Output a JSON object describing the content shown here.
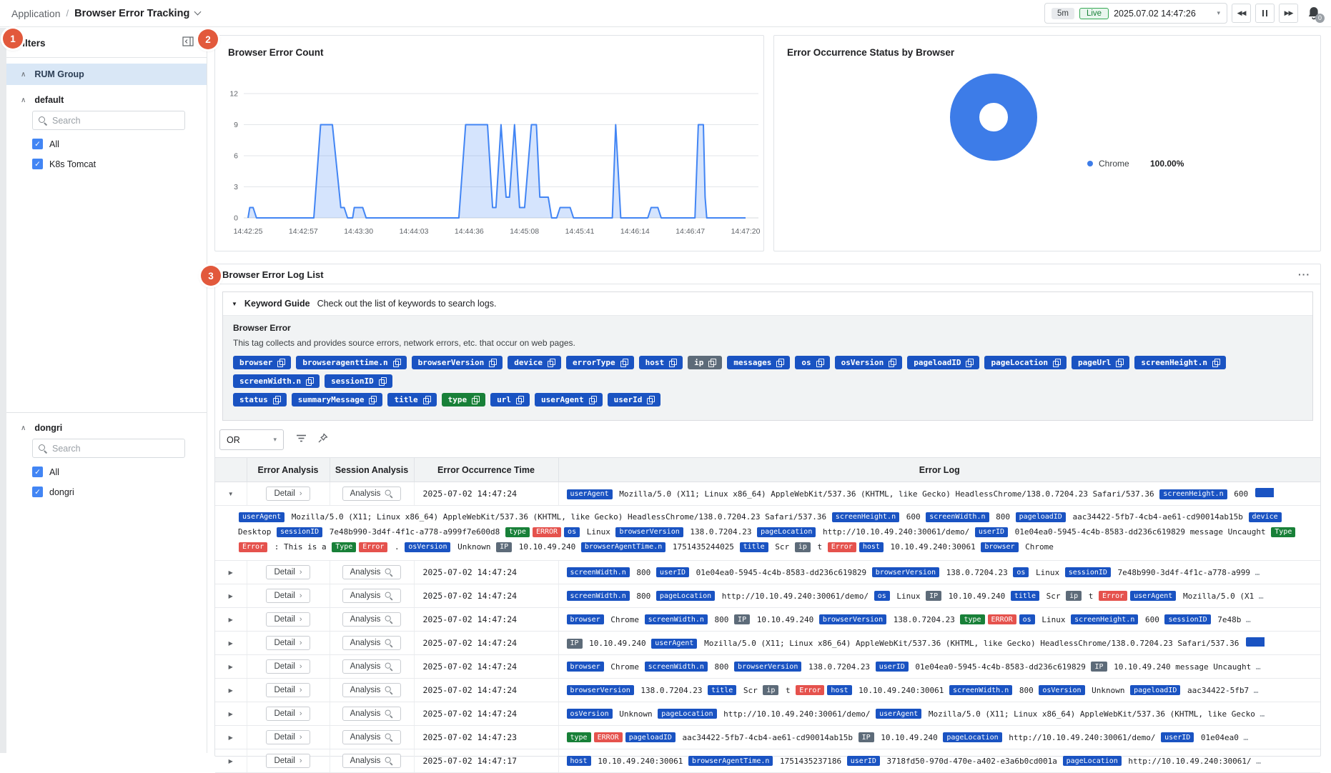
{
  "colors": {
    "accent_blue": "#1a53c2",
    "tag_grey": "#5d6b79",
    "tag_green": "#188038",
    "tag_red": "#e5524d",
    "chart_blue": "#4285f4",
    "donut_blue": "#3d7ce8",
    "badge_orange": "#e2593c",
    "live_green": "#188038",
    "rum_header_bg": "#d9e7f6",
    "checkbox_blue": "#4285f4"
  },
  "topbar": {
    "breadcrumb_root": "Application",
    "breadcrumb_sep": "/",
    "page_title": "Browser Error Tracking",
    "range_label": "5m",
    "live_label": "Live",
    "timestamp": "2025.07.02 14:47:26",
    "alarm_count": "0"
  },
  "annotations": {
    "one": "1",
    "two": "2",
    "three": "3"
  },
  "sidebar": {
    "title": "Filters",
    "root_group": "RUM Group",
    "groups": [
      {
        "name": "default",
        "search_placeholder": "Search",
        "items": [
          {
            "label": "All",
            "checked": true
          },
          {
            "label": "K8s Tomcat",
            "checked": true
          }
        ]
      },
      {
        "name": "dongri",
        "search_placeholder": "Search",
        "items": [
          {
            "label": "All",
            "checked": true
          },
          {
            "label": "dongri",
            "checked": true
          }
        ]
      }
    ]
  },
  "chart_data": [
    {
      "type": "area",
      "title": "Browser Error Count",
      "xlabel": "",
      "ylabel": "",
      "ylim": [
        0,
        12
      ],
      "y_ticks": [
        0,
        3,
        6,
        9,
        12
      ],
      "grid": true,
      "x_ticks": [
        "14:42:25",
        "14:42:57",
        "14:43:30",
        "14:44:03",
        "14:44:36",
        "14:45:08",
        "14:45:41",
        "14:46:14",
        "14:46:47",
        "14:47:20"
      ],
      "x_range_seconds": [
        0,
        295
      ],
      "series": [
        {
          "name": "Browser Error Count",
          "points": [
            [
              0,
              0
            ],
            [
              1,
              1
            ],
            [
              3,
              1
            ],
            [
              5,
              0
            ],
            [
              39,
              0
            ],
            [
              43,
              9
            ],
            [
              50,
              9
            ],
            [
              55,
              1
            ],
            [
              57,
              1
            ],
            [
              59,
              0
            ],
            [
              62,
              0
            ],
            [
              63,
              1
            ],
            [
              68,
              1
            ],
            [
              70,
              0
            ],
            [
              125,
              0
            ],
            [
              129,
              9
            ],
            [
              142,
              9
            ],
            [
              145,
              1
            ],
            [
              147,
              1
            ],
            [
              150,
              9
            ],
            [
              153,
              2
            ],
            [
              155,
              2
            ],
            [
              158,
              9
            ],
            [
              161,
              1
            ],
            [
              164,
              1
            ],
            [
              168,
              9
            ],
            [
              171,
              9
            ],
            [
              173,
              2
            ],
            [
              178,
              2
            ],
            [
              180,
              0
            ],
            [
              183,
              0
            ],
            [
              185,
              1
            ],
            [
              191,
              1
            ],
            [
              193,
              0
            ],
            [
              216,
              0
            ],
            [
              218,
              9
            ],
            [
              221,
              0
            ],
            [
              237,
              0
            ],
            [
              239,
              1
            ],
            [
              243,
              1
            ],
            [
              245,
              0
            ],
            [
              265,
              0
            ],
            [
              267,
              9
            ],
            [
              270,
              9
            ],
            [
              271,
              2
            ],
            [
              272,
              0
            ],
            [
              295,
              0
            ]
          ]
        }
      ],
      "line_color": "#4285f4",
      "fill_color": "rgba(66,133,244,0.22)"
    },
    {
      "type": "donut",
      "title": "Error Occurrence Status by Browser",
      "slices": [
        {
          "label": "Chrome",
          "value": 100.0,
          "display": "100.00%",
          "color": "#3d7ce8"
        }
      ],
      "legend_position": "right"
    }
  ],
  "log_list": {
    "title": "Browser Error Log List",
    "menu_dots": "···",
    "keyword_guide": {
      "label": "Keyword Guide",
      "hint": "Check out the list of keywords to search logs.",
      "section_title": "Browser Error",
      "description": "This tag collects and provides source errors, network errors, etc. that occur on web pages.",
      "tag_rows": [
        [
          {
            "label": "browser",
            "color": "blue"
          },
          {
            "label": "browseragenttime.n",
            "color": "blue"
          },
          {
            "label": "browserVersion",
            "color": "blue"
          },
          {
            "label": "device",
            "color": "blue"
          },
          {
            "label": "errorType",
            "color": "blue"
          },
          {
            "label": "host",
            "color": "blue"
          },
          {
            "label": "ip",
            "color": "grey"
          },
          {
            "label": "messages",
            "color": "blue"
          },
          {
            "label": "os",
            "color": "blue"
          },
          {
            "label": "osVersion",
            "color": "blue"
          },
          {
            "label": "pageloadID",
            "color": "blue"
          },
          {
            "label": "pageLocation",
            "color": "blue"
          },
          {
            "label": "pageUrl",
            "color": "blue"
          },
          {
            "label": "screenHeight.n",
            "color": "blue"
          },
          {
            "label": "screenWidth.n",
            "color": "blue"
          },
          {
            "label": "sessionID",
            "color": "blue"
          }
        ],
        [
          {
            "label": "status",
            "color": "blue"
          },
          {
            "label": "summaryMessage",
            "color": "blue"
          },
          {
            "label": "title",
            "color": "blue"
          },
          {
            "label": "type",
            "color": "green"
          },
          {
            "label": "url",
            "color": "blue"
          },
          {
            "label": "userAgent",
            "color": "blue"
          },
          {
            "label": "userId",
            "color": "blue"
          }
        ]
      ]
    },
    "operator": "OR",
    "table": {
      "headers": [
        "",
        "Error Analysis",
        "Session Analysis",
        "Error Occurrence Time",
        "Error Log"
      ],
      "detail_label": "Detail",
      "analysis_label": "Analysis",
      "rows": [
        {
          "expanded": true,
          "time": "2025-07-02 14:47:24",
          "log": [
            {
              "c": "userAgent"
            },
            {
              "t": "Mozilla/5.0 (X11; Linux x86_64) AppleWebKit/537.36 (KHTML, like Gecko) HeadlessChrome/138.0.7204.23 Safari/537.36"
            },
            {
              "c": "screenHeight.n"
            },
            {
              "t": "600"
            },
            {
              "cut": 1
            }
          ],
          "detail": [
            {
              "c": "userAgent"
            },
            {
              "t": "Mozilla/5.0 (X11; Linux x86_64) AppleWebKit/537.36 (KHTML, like Gecko) HeadlessChrome/138.0.7204.23 Safari/537.36"
            },
            {
              "c": "screenHeight.n"
            },
            {
              "t": "600"
            },
            {
              "c": "screenWidth.n"
            },
            {
              "t": "800"
            },
            {
              "c": "pageloadID"
            },
            {
              "t": "aac34422-5fb7-4cb4-ae61-cd90014ab15b"
            },
            {
              "c": "device"
            },
            {
              "t": "Desktop"
            },
            {
              "c": "sessionID"
            },
            {
              "t": "7e48b990-3d4f-4f1c-a778-a999f7e600d8"
            },
            {
              "c": "type",
              "x": "green"
            },
            {
              "c": "ERROR",
              "x": "red"
            },
            {
              "c": "os"
            },
            {
              "t": "Linux"
            },
            {
              "c": "browserVersion"
            },
            {
              "t": "138.0.7204.23"
            },
            {
              "c": "pageLocation"
            },
            {
              "t": "http://10.10.49.240:30061/demo/"
            },
            {
              "c": "userID"
            },
            {
              "t": "01e04ea0-5945-4c4b-8583-dd236c619829"
            },
            {
              "t": "message Uncaught"
            },
            {
              "c": "Type",
              "x": "green"
            },
            {
              "c": "Error",
              "x": "red"
            },
            {
              "t": ": This is a"
            },
            {
              "c": "Type",
              "x": "green"
            },
            {
              "c": "Error",
              "x": "red"
            },
            {
              "t": "."
            },
            {
              "c": "osVersion"
            },
            {
              "t": "Unknown"
            },
            {
              "c": "IP",
              "x": "grey"
            },
            {
              "t": "10.10.49.240"
            },
            {
              "c": "browserAgentTime.n"
            },
            {
              "t": "1751435244025"
            },
            {
              "c": "title"
            },
            {
              "t": "Scr"
            },
            {
              "c": "ip",
              "x": "grey"
            },
            {
              "t": "t"
            },
            {
              "c": "Error",
              "x": "red"
            },
            {
              "c": "host"
            },
            {
              "t": "10.10.49.240:30061"
            },
            {
              "c": "browser"
            },
            {
              "t": "Chrome"
            }
          ]
        },
        {
          "time": "2025-07-02 14:47:24",
          "log": [
            {
              "c": "screenWidth.n"
            },
            {
              "t": "800"
            },
            {
              "c": "userID"
            },
            {
              "t": "01e04ea0-5945-4c4b-8583-dd236c619829"
            },
            {
              "c": "browserVersion"
            },
            {
              "t": "138.0.7204.23"
            },
            {
              "c": "os"
            },
            {
              "t": "Linux"
            },
            {
              "c": "sessionID"
            },
            {
              "t": "7e48b990-3d4f-4f1c-a778-a999"
            },
            {
              "e": 1
            }
          ]
        },
        {
          "time": "2025-07-02 14:47:24",
          "log": [
            {
              "c": "screenWidth.n"
            },
            {
              "t": "800"
            },
            {
              "c": "pageLocation"
            },
            {
              "t": "http://10.10.49.240:30061/demo/"
            },
            {
              "c": "os"
            },
            {
              "t": "Linux"
            },
            {
              "c": "IP",
              "x": "grey"
            },
            {
              "t": "10.10.49.240"
            },
            {
              "c": "title"
            },
            {
              "t": "Scr"
            },
            {
              "c": "ip",
              "x": "grey"
            },
            {
              "t": "t"
            },
            {
              "c": "Error",
              "x": "red"
            },
            {
              "c": "userAgent"
            },
            {
              "t": "Mozilla/5.0 (X1"
            },
            {
              "e": 1
            }
          ]
        },
        {
          "time": "2025-07-02 14:47:24",
          "log": [
            {
              "c": "browser"
            },
            {
              "t": "Chrome"
            },
            {
              "c": "screenWidth.n"
            },
            {
              "t": "800"
            },
            {
              "c": "IP",
              "x": "grey"
            },
            {
              "t": "10.10.49.240"
            },
            {
              "c": "browserVersion"
            },
            {
              "t": "138.0.7204.23"
            },
            {
              "c": "type",
              "x": "green"
            },
            {
              "c": "ERROR",
              "x": "red"
            },
            {
              "c": "os"
            },
            {
              "t": "Linux"
            },
            {
              "c": "screenHeight.n"
            },
            {
              "t": "600"
            },
            {
              "c": "sessionID"
            },
            {
              "t": "7e48b"
            },
            {
              "e": 1
            }
          ]
        },
        {
          "time": "2025-07-02 14:47:24",
          "log": [
            {
              "c": "IP",
              "x": "grey"
            },
            {
              "t": "10.10.49.240"
            },
            {
              "c": "userAgent"
            },
            {
              "t": "Mozilla/5.0 (X11; Linux x86_64) AppleWebKit/537.36 (KHTML, like Gecko) HeadlessChrome/138.0.7204.23 Safari/537.36"
            },
            {
              "cut": 1
            }
          ]
        },
        {
          "time": "2025-07-02 14:47:24",
          "log": [
            {
              "c": "browser"
            },
            {
              "t": "Chrome"
            },
            {
              "c": "screenWidth.n"
            },
            {
              "t": "800"
            },
            {
              "c": "browserVersion"
            },
            {
              "t": "138.0.7204.23"
            },
            {
              "c": "userID"
            },
            {
              "t": "01e04ea0-5945-4c4b-8583-dd236c619829"
            },
            {
              "c": "IP",
              "x": "grey"
            },
            {
              "t": "10.10.49.240"
            },
            {
              "t": "message Uncaught"
            },
            {
              "e": 1
            }
          ]
        },
        {
          "time": "2025-07-02 14:47:24",
          "log": [
            {
              "c": "browserVersion"
            },
            {
              "t": "138.0.7204.23"
            },
            {
              "c": "title"
            },
            {
              "t": "Scr"
            },
            {
              "c": "ip",
              "x": "grey"
            },
            {
              "t": "t"
            },
            {
              "c": "Error",
              "x": "red"
            },
            {
              "c": "host"
            },
            {
              "t": "10.10.49.240:30061"
            },
            {
              "c": "screenWidth.n"
            },
            {
              "t": "800"
            },
            {
              "c": "osVersion"
            },
            {
              "t": "Unknown"
            },
            {
              "c": "pageloadID"
            },
            {
              "t": "aac34422-5fb7"
            },
            {
              "e": 1
            }
          ]
        },
        {
          "time": "2025-07-02 14:47:24",
          "log": [
            {
              "c": "osVersion"
            },
            {
              "t": "Unknown"
            },
            {
              "c": "pageLocation"
            },
            {
              "t": "http://10.10.49.240:30061/demo/"
            },
            {
              "c": "userAgent"
            },
            {
              "t": "Mozilla/5.0 (X11; Linux x86_64) AppleWebKit/537.36 (KHTML, like Gecko"
            },
            {
              "e": 1
            }
          ]
        },
        {
          "time": "2025-07-02 14:47:23",
          "log": [
            {
              "c": "type",
              "x": "green"
            },
            {
              "c": "ERROR",
              "x": "red"
            },
            {
              "c": "pageloadID"
            },
            {
              "t": "aac34422-5fb7-4cb4-ae61-cd90014ab15b"
            },
            {
              "c": "IP",
              "x": "grey"
            },
            {
              "t": "10.10.49.240"
            },
            {
              "c": "pageLocation"
            },
            {
              "t": "http://10.10.49.240:30061/demo/"
            },
            {
              "c": "userID"
            },
            {
              "t": "01e04ea0"
            },
            {
              "e": 1
            }
          ]
        },
        {
          "time": "2025-07-02 14:47:17",
          "log": [
            {
              "c": "host"
            },
            {
              "t": "10.10.49.240:30061"
            },
            {
              "c": "browserAgentTime.n"
            },
            {
              "t": "1751435237186"
            },
            {
              "c": "userID"
            },
            {
              "t": "3718fd50-970d-470e-a402-e3a6b0cd001a"
            },
            {
              "c": "pageLocation"
            },
            {
              "t": "http://10.10.49.240:30061/"
            },
            {
              "e": 1
            }
          ]
        }
      ]
    }
  }
}
